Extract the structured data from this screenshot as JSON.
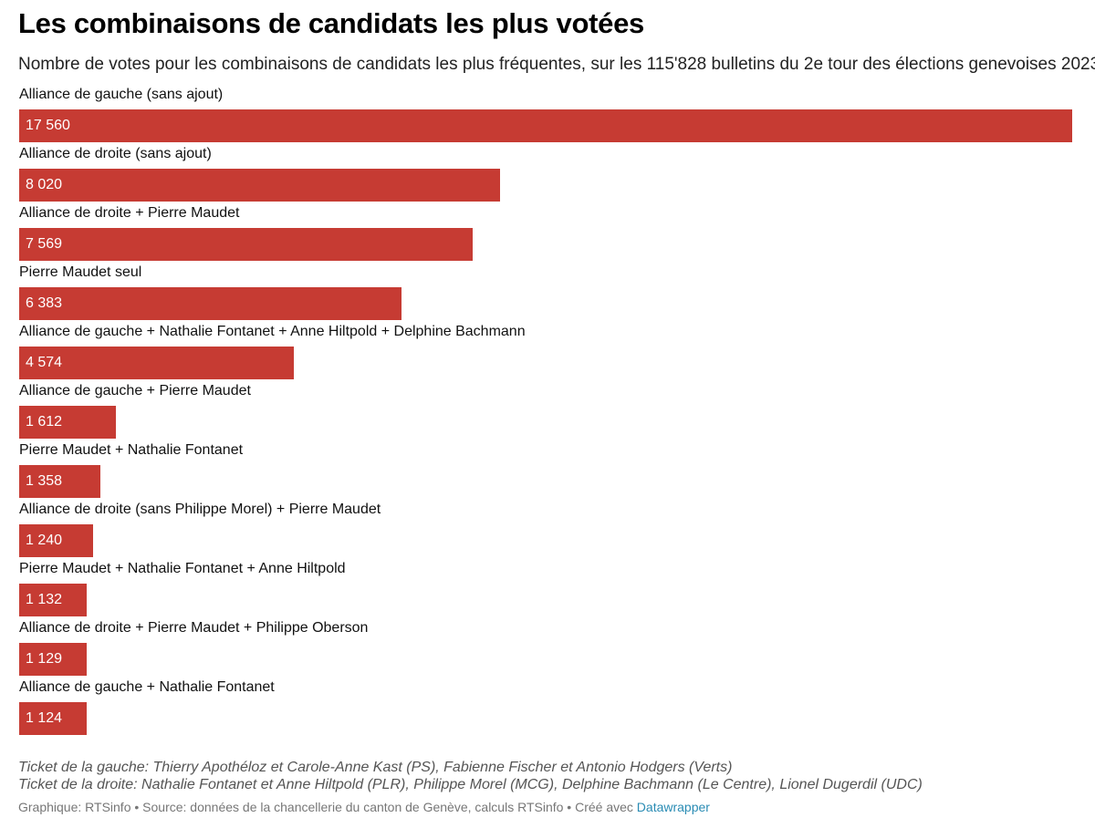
{
  "title": "Les combinaisons de candidats les plus votées",
  "subtitle": "Nombre de votes pour les combinaisons de candidats les plus fréquentes, sur les 115'828 bulletins du 2e tour des élections genevoises 2023",
  "bar_color": "#c63b33",
  "chart_data": {
    "type": "bar",
    "orientation": "horizontal",
    "title": "Les combinaisons de candidats les plus votées",
    "subtitle": "Nombre de votes pour les combinaisons de candidats les plus fréquentes, sur les 115'828 bulletins du 2e tour des élections genevoises 2023",
    "xlabel": "",
    "ylabel": "",
    "grid": false,
    "xlim": [
      0,
      17560
    ],
    "categories": [
      "Alliance de gauche (sans ajout)",
      "Alliance de droite (sans ajout)",
      "Alliance de droite + Pierre Maudet",
      "Pierre Maudet seul",
      "Alliance de gauche + Nathalie Fontanet + Anne Hiltpold + Delphine Bachmann",
      "Alliance de gauche + Pierre Maudet",
      "Pierre Maudet + Nathalie Fontanet",
      "Alliance de droite (sans Philippe Morel) + Pierre Maudet",
      "Pierre Maudet + Nathalie Fontanet + Anne Hiltpold",
      "Alliance de droite + Pierre Maudet + Philippe Oberson",
      "Alliance de gauche + Nathalie Fontanet"
    ],
    "values": [
      17560,
      8020,
      7569,
      6383,
      4574,
      1612,
      1358,
      1240,
      1132,
      1129,
      1124
    ],
    "value_labels": [
      "17 560",
      "8 020",
      "7 569",
      "6 383",
      "4 574",
      "1 612",
      "1 358",
      "1 240",
      "1 132",
      "1 129",
      "1 124"
    ]
  },
  "notes": {
    "line1": "Ticket de la gauche: Thierry Apothéloz et Carole-Anne Kast (PS), Fabienne Fischer et Antonio Hodgers (Verts)",
    "line2": "Ticket de la droite: Nathalie Fontanet et Anne Hiltpold (PLR), Philippe Morel (MCG), Delphine Bachmann (Le Centre), Lionel Dugerdil (UDC)"
  },
  "footer": {
    "text": "Graphique: RTSinfo • Source: données de la chancellerie du canton de Genève, calculs RTSinfo • Créé avec ",
    "link_label": "Datawrapper",
    "link_color": "#2a8cb4"
  }
}
